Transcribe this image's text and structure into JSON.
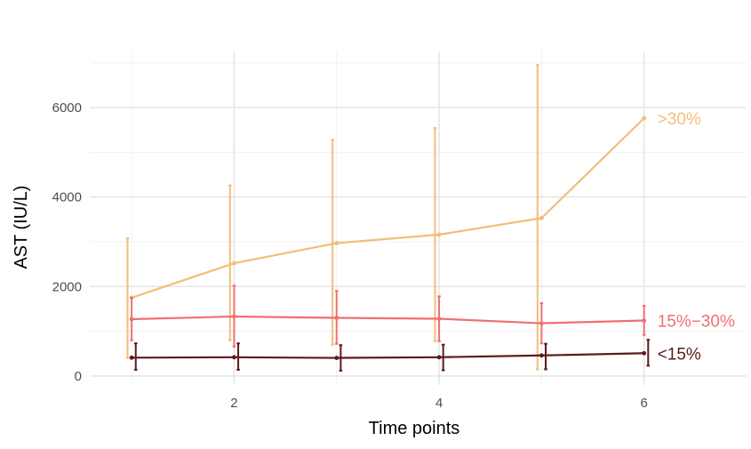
{
  "chart_data": {
    "type": "line",
    "title": "",
    "xlabel": "Time points",
    "ylabel": "AST (IU/L)",
    "x_ticks": [
      2,
      4,
      6
    ],
    "y_ticks": [
      0,
      2000,
      4000,
      6000
    ],
    "xlim": [
      0.6,
      7.0
    ],
    "ylim": [
      -200,
      7250
    ],
    "grid": true,
    "legend": "none (series labelled at line ends)",
    "error_bars": true,
    "series": [
      {
        "name": ">30%",
        "color": "#F2BE78",
        "x": [
          1,
          2,
          3,
          4,
          5,
          6
        ],
        "y": [
          1750,
          2520,
          2970,
          3160,
          3530,
          5760
        ],
        "err_low": [
          400,
          800,
          700,
          780,
          150,
          5760
        ],
        "err_high": [
          3080,
          4260,
          5280,
          5540,
          6950,
          5760
        ]
      },
      {
        "name": "15%−30%",
        "color": "#F07070",
        "x": [
          1,
          2,
          3,
          4,
          5,
          6
        ],
        "y": [
          1270,
          1330,
          1300,
          1280,
          1180,
          1240
        ],
        "err_low": [
          800,
          660,
          720,
          780,
          730,
          920
        ],
        "err_high": [
          1750,
          2020,
          1900,
          1780,
          1630,
          1570
        ]
      },
      {
        "name": "<15%",
        "color": "#5C1B1B",
        "x": [
          1,
          2,
          3,
          4,
          5,
          6
        ],
        "y": [
          410,
          420,
          405,
          420,
          460,
          510
        ],
        "err_low": [
          140,
          140,
          120,
          130,
          150,
          230
        ],
        "err_high": [
          730,
          730,
          690,
          700,
          720,
          810
        ]
      }
    ]
  }
}
